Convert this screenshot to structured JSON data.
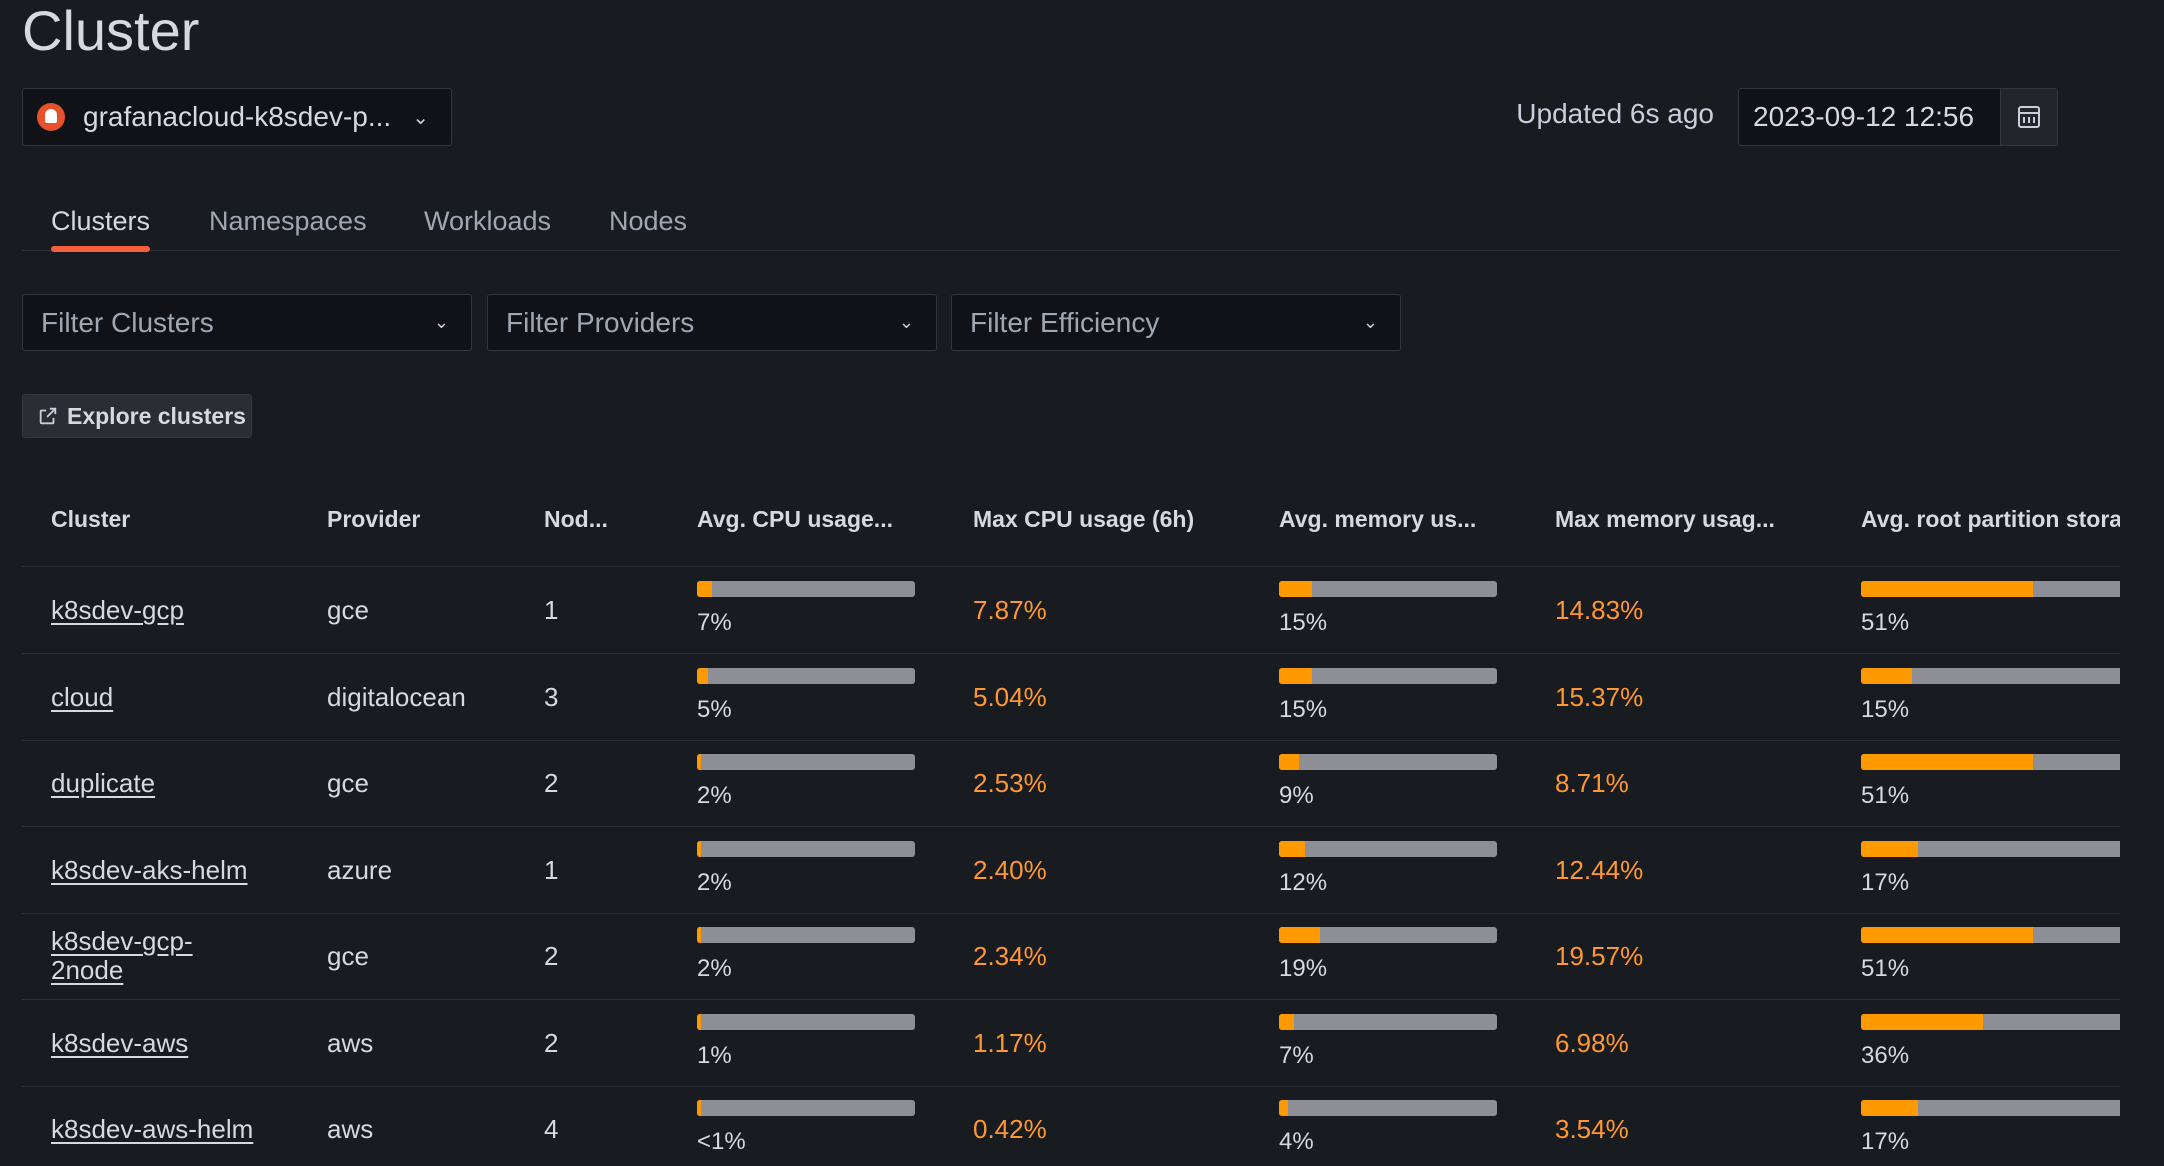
{
  "page": {
    "title": "Cluster"
  },
  "datasource": {
    "label": "grafanacloud-k8sdev-p...",
    "icon": "prometheus-icon"
  },
  "time": {
    "updated": "Updated 6s ago",
    "date": "2023-09-12 12:56",
    "picker_icon": "calendar-icon"
  },
  "tabs": [
    {
      "label": "Clusters",
      "active": true
    },
    {
      "label": "Namespaces",
      "active": false
    },
    {
      "label": "Workloads",
      "active": false
    },
    {
      "label": "Nodes",
      "active": false
    }
  ],
  "filters": [
    {
      "placeholder": "Filter Clusters"
    },
    {
      "placeholder": "Filter Providers"
    },
    {
      "placeholder": "Filter Efficiency"
    }
  ],
  "explore": {
    "label": "Explore clusters",
    "icon": "external-link-icon"
  },
  "colors": {
    "accent": "#f55f3e",
    "bar_fill": "#ff9900",
    "bar_track": "#8e8e97",
    "warning_text": "#ff9830"
  },
  "table": {
    "headers": [
      "Cluster",
      "Provider",
      "Nod...",
      "Avg. CPU usage...",
      "Max CPU usage (6h)",
      "Avg. memory us...",
      "Max memory usag...",
      "Avg. root partition storag"
    ],
    "rows": [
      {
        "cluster": "k8sdev-gcp",
        "provider": "gce",
        "nodes": "1",
        "cpu_avg": "7%",
        "cpu_avg_fill": 0.07,
        "cpu_max": "7.87%",
        "mem_avg": "15%",
        "mem_avg_fill": 0.15,
        "mem_max": "14.83%",
        "root_avg": "51%",
        "root_avg_fill": 0.51
      },
      {
        "cluster": "cloud",
        "provider": "digitalocean",
        "nodes": "3",
        "cpu_avg": "5%",
        "cpu_avg_fill": 0.05,
        "cpu_max": "5.04%",
        "mem_avg": "15%",
        "mem_avg_fill": 0.15,
        "mem_max": "15.37%",
        "root_avg": "15%",
        "root_avg_fill": 0.15
      },
      {
        "cluster": "duplicate",
        "provider": "gce",
        "nodes": "2",
        "cpu_avg": "2%",
        "cpu_avg_fill": 0.02,
        "cpu_max": "2.53%",
        "mem_avg": "9%",
        "mem_avg_fill": 0.09,
        "mem_max": "8.71%",
        "root_avg": "51%",
        "root_avg_fill": 0.51
      },
      {
        "cluster": "k8sdev-aks-helm",
        "provider": "azure",
        "nodes": "1",
        "cpu_avg": "2%",
        "cpu_avg_fill": 0.02,
        "cpu_max": "2.40%",
        "mem_avg": "12%",
        "mem_avg_fill": 0.12,
        "mem_max": "12.44%",
        "root_avg": "17%",
        "root_avg_fill": 0.17
      },
      {
        "cluster": "k8sdev-gcp-2node",
        "provider": "gce",
        "nodes": "2",
        "cpu_avg": "2%",
        "cpu_avg_fill": 0.02,
        "cpu_max": "2.34%",
        "mem_avg": "19%",
        "mem_avg_fill": 0.19,
        "mem_max": "19.57%",
        "root_avg": "51%",
        "root_avg_fill": 0.51
      },
      {
        "cluster": "k8sdev-aws",
        "provider": "aws",
        "nodes": "2",
        "cpu_avg": "1%",
        "cpu_avg_fill": 0.01,
        "cpu_max": "1.17%",
        "mem_avg": "7%",
        "mem_avg_fill": 0.07,
        "mem_max": "6.98%",
        "root_avg": "36%",
        "root_avg_fill": 0.36
      },
      {
        "cluster": "k8sdev-aws-helm",
        "provider": "aws",
        "nodes": "4",
        "cpu_avg": "<1%",
        "cpu_avg_fill": 0.004,
        "cpu_max": "0.42%",
        "mem_avg": "4%",
        "mem_avg_fill": 0.04,
        "mem_max": "3.54%",
        "root_avg": "17%",
        "root_avg_fill": 0.17
      }
    ]
  }
}
